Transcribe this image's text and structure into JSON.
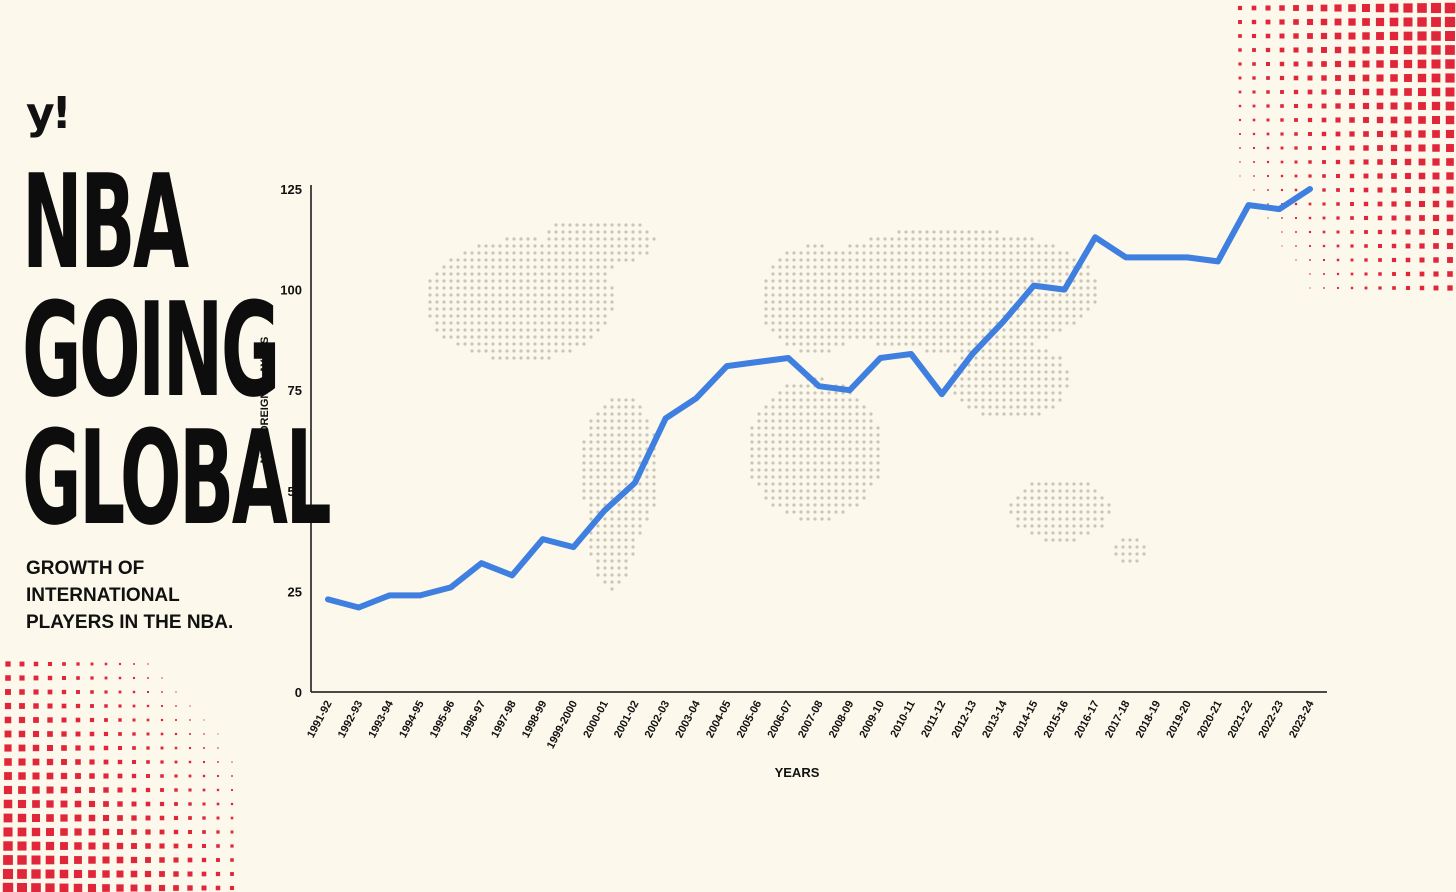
{
  "brand": {
    "logo_text": "y!"
  },
  "headline": {
    "lines": [
      "NBA",
      "GOING",
      "GLOBAL"
    ]
  },
  "subtitle": "GROWTH OF INTERNATIONAL PLAYERS IN THE NBA.",
  "colors": {
    "background": "#fcf8ec",
    "line": "#3e7fe0",
    "accent_dots": "#e0263a",
    "map_dots": "#c9c5b8",
    "text": "#111111"
  },
  "chart_data": {
    "type": "line",
    "title": "",
    "xlabel": "YEARS",
    "ylabel": "NO. FOREIGN PLAYERS",
    "ylim": [
      0,
      125
    ],
    "yticks": [
      0,
      25,
      50,
      75,
      100,
      125
    ],
    "grid": false,
    "categories": [
      "1991-92",
      "1992-93",
      "1993-94",
      "1994-95",
      "1995-96",
      "1996-97",
      "1997-98",
      "1998-99",
      "1999-2000",
      "2000-01",
      "2001-02",
      "2002-03",
      "2003-04",
      "2004-05",
      "2005-06",
      "2006-07",
      "2007-08",
      "2008-09",
      "2009-10",
      "2010-11",
      "2011-12",
      "2012-13",
      "2013-14",
      "2014-15",
      "2015-16",
      "2016-17",
      "2017-18",
      "2018-19",
      "2019-20",
      "2020-21",
      "2021-22",
      "2022-23",
      "2023-24"
    ],
    "series": [
      {
        "values": [
          23,
          21,
          24,
          24,
          26,
          32,
          29,
          38,
          36,
          45,
          52,
          68,
          73,
          81,
          82,
          83,
          76,
          75,
          83,
          84,
          74,
          84,
          92,
          101,
          100,
          113,
          108,
          108,
          108,
          107,
          121,
          120,
          125
        ]
      }
    ]
  }
}
